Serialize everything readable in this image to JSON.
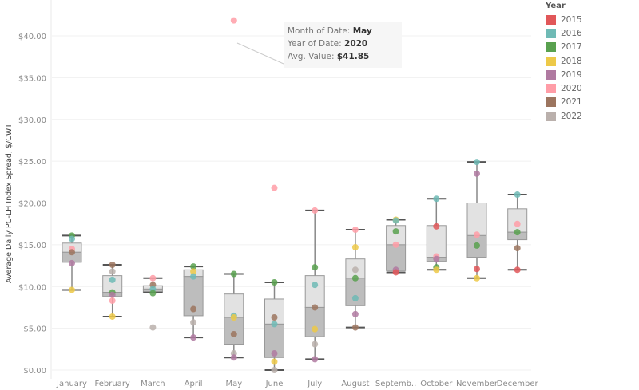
{
  "chart_data": {
    "type": "boxplot",
    "ylabel": "Average Daily PC-LH Index Spread, $/CWT",
    "ylim": [
      0,
      42
    ],
    "yticks": [
      "$0.00",
      "$5.00",
      "$10.00",
      "$15.00",
      "$20.00",
      "$25.00",
      "$30.00",
      "$35.00",
      "$40.00"
    ],
    "ytick_values": [
      0,
      5,
      10,
      15,
      20,
      25,
      30,
      35,
      40
    ],
    "grid": true,
    "categories": [
      "January",
      "February",
      "March",
      "April",
      "May",
      "June",
      "July",
      "August",
      "Septemb..",
      "October",
      "November",
      "December"
    ],
    "boxes": [
      {
        "low": 9.6,
        "q1": 12.9,
        "median": 14.1,
        "q3": 15.2,
        "high": 16.1
      },
      {
        "low": 6.4,
        "q1": 8.8,
        "median": 9.3,
        "q3": 11.3,
        "high": 12.6
      },
      {
        "low": 9.3,
        "q1": 9.3,
        "median": 9.7,
        "q3": 10.1,
        "high": 11.0
      },
      {
        "low": 3.9,
        "q1": 6.5,
        "median": 11.2,
        "q3": 12.0,
        "high": 12.4
      },
      {
        "low": 1.5,
        "q1": 3.1,
        "median": 6.3,
        "q3": 9.1,
        "high": 11.5
      },
      {
        "low": 0.0,
        "q1": 1.5,
        "median": 5.5,
        "q3": 8.5,
        "high": 10.5
      },
      {
        "low": 1.3,
        "q1": 4.0,
        "median": 7.5,
        "q3": 11.3,
        "high": 19.1
      },
      {
        "low": 5.1,
        "q1": 7.7,
        "median": 11.0,
        "q3": 13.3,
        "high": 16.8
      },
      {
        "low": 11.7,
        "q1": 11.9,
        "median": 15.0,
        "q3": 17.3,
        "high": 18.0
      },
      {
        "low": 12.0,
        "q1": 13.0,
        "median": 13.5,
        "q3": 17.3,
        "high": 20.5
      },
      {
        "low": 11.0,
        "q1": 13.5,
        "median": 16.1,
        "q3": 20.0,
        "high": 24.9
      },
      {
        "low": 12.0,
        "q1": 15.6,
        "median": 16.5,
        "q3": 19.3,
        "high": 21.0
      }
    ],
    "points": [
      [
        [
          2017,
          16.1
        ],
        [
          2016,
          15.7
        ],
        [
          2020,
          14.5
        ],
        [
          2021,
          14.1
        ],
        [
          2019,
          12.8
        ],
        [
          2018,
          9.6
        ]
      ],
      [
        [
          2021,
          12.6
        ],
        [
          2022,
          11.8
        ],
        [
          2016,
          10.8
        ],
        [
          2017,
          9.3
        ],
        [
          2019,
          9.0
        ],
        [
          2020,
          8.3
        ],
        [
          2018,
          6.4
        ]
      ],
      [
        [
          2020,
          11.0
        ],
        [
          2021,
          10.2
        ],
        [
          2016,
          9.7
        ],
        [
          2017,
          9.2
        ],
        [
          2022,
          5.1
        ]
      ],
      [
        [
          2017,
          12.4
        ],
        [
          2018,
          11.8
        ],
        [
          2016,
          11.2
        ],
        [
          2021,
          7.3
        ],
        [
          2022,
          5.7
        ],
        [
          2019,
          3.9
        ]
      ],
      [
        [
          2020,
          41.85
        ],
        [
          2017,
          11.5
        ],
        [
          2016,
          6.5
        ],
        [
          2018,
          6.3
        ],
        [
          2021,
          4.3
        ],
        [
          2022,
          2.0
        ],
        [
          2019,
          1.5
        ]
      ],
      [
        [
          2020,
          21.8
        ],
        [
          2017,
          10.5
        ],
        [
          2021,
          6.3
        ],
        [
          2016,
          5.5
        ],
        [
          2019,
          2.0
        ],
        [
          2018,
          1.0
        ],
        [
          2022,
          0.0
        ]
      ],
      [
        [
          2020,
          19.1
        ],
        [
          2017,
          12.3
        ],
        [
          2016,
          10.2
        ],
        [
          2021,
          7.5
        ],
        [
          2018,
          4.9
        ],
        [
          2022,
          3.1
        ],
        [
          2019,
          1.3
        ]
      ],
      [
        [
          2020,
          16.8
        ],
        [
          2018,
          14.7
        ],
        [
          2022,
          12.0
        ],
        [
          2017,
          11.0
        ],
        [
          2016,
          8.6
        ],
        [
          2019,
          6.7
        ],
        [
          2021,
          5.1
        ]
      ],
      [
        [
          2018,
          18.0
        ],
        [
          2016,
          17.9
        ],
        [
          2017,
          16.6
        ],
        [
          2020,
          15.0
        ],
        [
          2019,
          12.0
        ],
        [
          2015,
          11.7
        ]
      ],
      [
        [
          2016,
          20.5
        ],
        [
          2015,
          17.2
        ],
        [
          2020,
          13.6
        ],
        [
          2019,
          13.3
        ],
        [
          2017,
          12.3
        ],
        [
          2018,
          12.0
        ]
      ],
      [
        [
          2016,
          24.9
        ],
        [
          2019,
          23.5
        ],
        [
          2020,
          16.2
        ],
        [
          2017,
          14.9
        ],
        [
          2015,
          12.1
        ],
        [
          2018,
          11.0
        ]
      ],
      [
        [
          2016,
          21.0
        ],
        [
          2020,
          17.5
        ],
        [
          2017,
          16.5
        ],
        [
          2021,
          14.6
        ],
        [
          2015,
          12.0
        ]
      ]
    ],
    "legend": {
      "title": "Year",
      "placement": "top-right",
      "entries": [
        {
          "label": "2015",
          "color": "#e15759"
        },
        {
          "label": "2016",
          "color": "#6fbab5"
        },
        {
          "label": "2017",
          "color": "#59a14f"
        },
        {
          "label": "2018",
          "color": "#edc948"
        },
        {
          "label": "2019",
          "color": "#b07aa1"
        },
        {
          "label": "2020",
          "color": "#ff9da7"
        },
        {
          "label": "2021",
          "color": "#9c755f"
        },
        {
          "label": "2022",
          "color": "#bab0ac"
        }
      ]
    },
    "tooltip": {
      "month_label": "Month of Date:",
      "month": "May",
      "year_label": "Year of Date:",
      "year": "2020",
      "value_label": "Avg. Value:",
      "value": "$41.85"
    }
  }
}
